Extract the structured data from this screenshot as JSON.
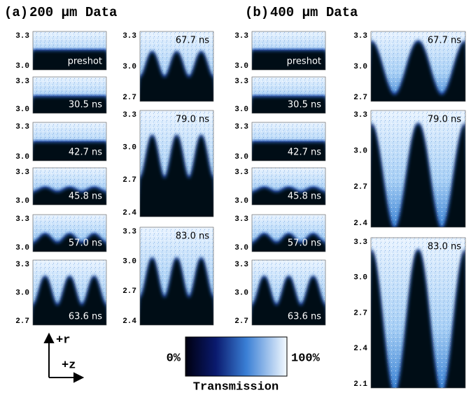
{
  "figure": {
    "groups": [
      {
        "label": "(a)",
        "title": "200 μm Data",
        "left": [
          {
            "time": "preshot",
            "yticks": [
              "3.3",
              "3.0"
            ]
          },
          {
            "time": "30.5 ns",
            "yticks": [
              "3.3",
              "3.0"
            ]
          },
          {
            "time": "42.7 ns",
            "yticks": [
              "3.3",
              "3.0"
            ]
          },
          {
            "time": "45.8 ns",
            "yticks": [
              "3.3",
              "3.0"
            ]
          },
          {
            "time": "57.0 ns",
            "yticks": [
              "3.3",
              "3.0"
            ]
          },
          {
            "time": "63.6 ns",
            "yticks": [
              "3.3",
              "3.0",
              "2.7"
            ]
          }
        ],
        "right": [
          {
            "time": "67.7 ns",
            "yticks": [
              "3.3",
              "3.0",
              "2.7"
            ]
          },
          {
            "time": "79.0 ns",
            "yticks": [
              "3.3",
              "3.0",
              "2.7",
              "2.4"
            ]
          },
          {
            "time": "83.0 ns",
            "yticks": [
              "3.3",
              "3.0",
              "2.7",
              "2.4"
            ]
          }
        ]
      },
      {
        "label": "(b)",
        "title": "400 μm Data",
        "left": [
          {
            "time": "preshot",
            "yticks": [
              "3.3",
              "3.0"
            ]
          },
          {
            "time": "30.5 ns",
            "yticks": [
              "3.3",
              "3.0"
            ]
          },
          {
            "time": "42.7 ns",
            "yticks": [
              "3.3",
              "3.0"
            ]
          },
          {
            "time": "45.8 ns",
            "yticks": [
              "3.3",
              "3.0"
            ]
          },
          {
            "time": "57.0 ns",
            "yticks": [
              "3.3",
              "3.0"
            ]
          },
          {
            "time": "63.6 ns",
            "yticks": [
              "3.3",
              "3.0",
              "2.7"
            ]
          }
        ],
        "right": [
          {
            "time": "67.7 ns",
            "yticks": [
              "3.3",
              "3.0",
              "2.7"
            ]
          },
          {
            "time": "79.0 ns",
            "yticks": [
              "3.3",
              "3.0",
              "2.7",
              "2.4"
            ]
          },
          {
            "time": "83.0 ns",
            "yticks": [
              "3.3",
              "3.0",
              "2.7",
              "2.4",
              "2.1"
            ]
          }
        ]
      }
    ],
    "axes": {
      "r": "+r",
      "z": "+z"
    },
    "colorbar": {
      "min_label": "0%",
      "max_label": "100%",
      "title": "Transmission"
    }
  }
}
